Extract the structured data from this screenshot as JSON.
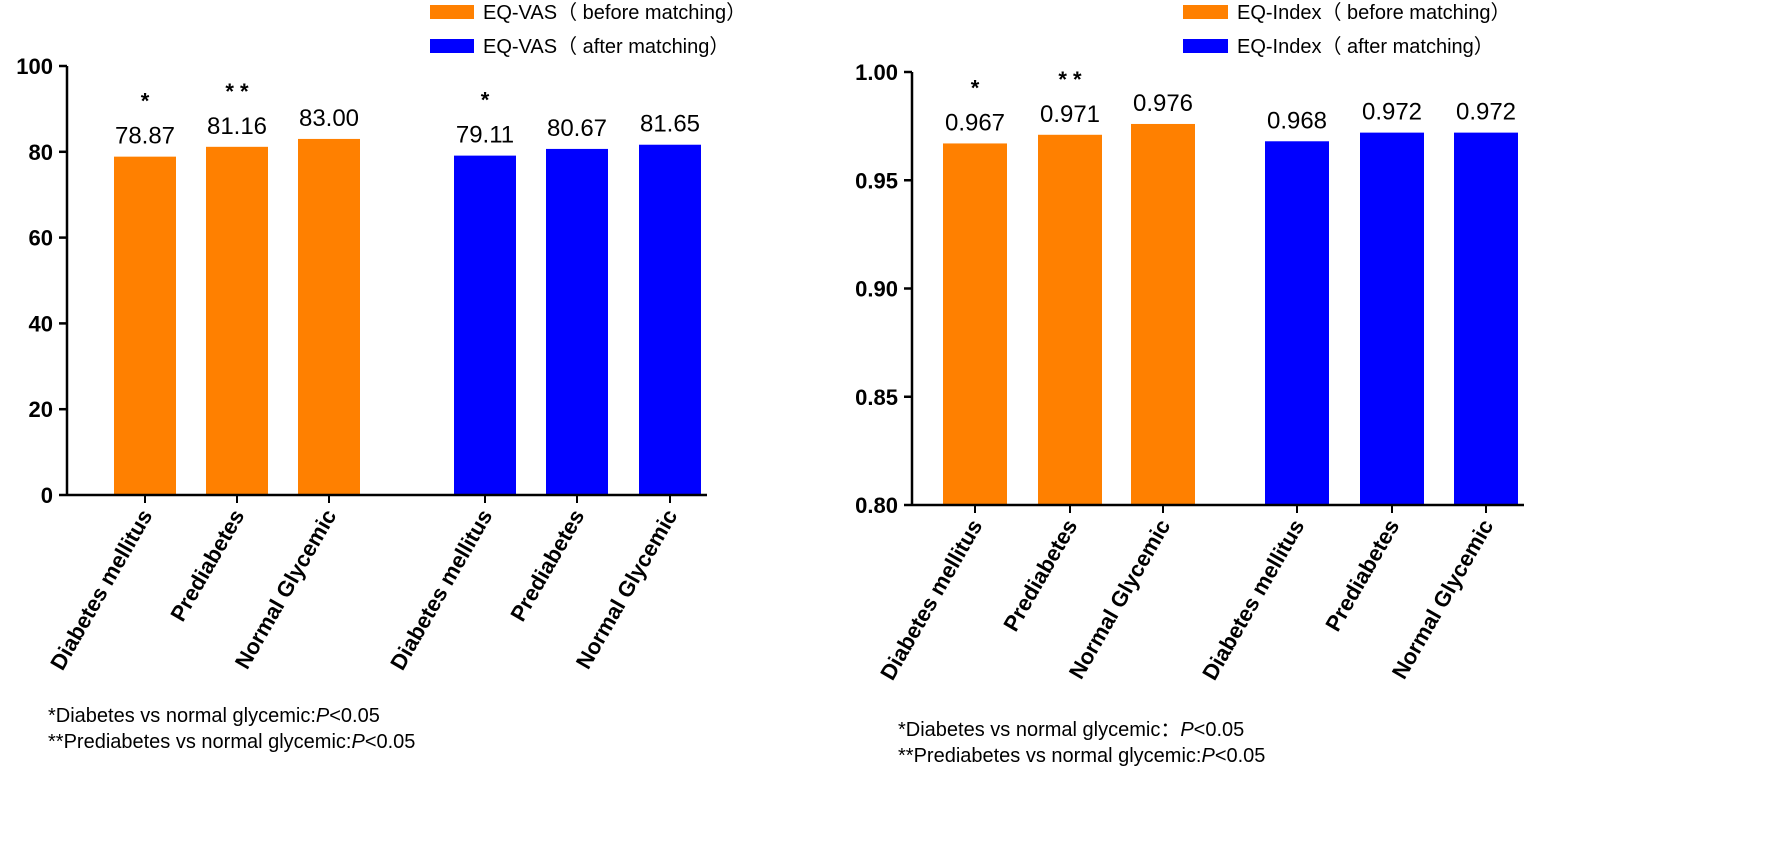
{
  "colors": {
    "before": "#FF8000",
    "after": "#0000FF",
    "axis": "#000000"
  },
  "chart_data": [
    {
      "type": "bar",
      "ylim": [
        0,
        100
      ],
      "yticks": [
        "0",
        "20",
        "40",
        "60",
        "80",
        "100"
      ],
      "legend_position": "top-right",
      "categories": [
        "Diabetes mellitus",
        "Prediabetes",
        "Normal Glycemic"
      ],
      "series": [
        {
          "name": "EQ-VAS（ before matching）",
          "color": "before",
          "values": [
            78.87,
            81.16,
            83.0
          ],
          "labels": [
            "78.87",
            "81.16",
            "83.00"
          ],
          "marks": [
            "*",
            "* *",
            ""
          ]
        },
        {
          "name": "EQ-VAS（ after matching）",
          "color": "after",
          "values": [
            79.11,
            80.67,
            81.65
          ],
          "labels": [
            "79.11",
            "80.67",
            "81.65"
          ],
          "marks": [
            "*",
            "",
            ""
          ]
        }
      ],
      "footnotes": [
        {
          "prefix": "*Diabetes vs normal glycemic:",
          "p": "P",
          "suffix": "<0.05"
        },
        {
          "prefix": "**Prediabetes vs normal glycemic:",
          "p": "P",
          "suffix": "<0.05"
        }
      ]
    },
    {
      "type": "bar",
      "ylim": [
        0.8,
        1.0
      ],
      "yticks": [
        "0.80",
        "0.85",
        "0.90",
        "0.95",
        "1.00"
      ],
      "legend_position": "top-right",
      "categories": [
        "Diabetes mellitus",
        "Prediabetes",
        "Normal Glycemic"
      ],
      "series": [
        {
          "name": "EQ-Index（ before matching）",
          "color": "before",
          "values": [
            0.967,
            0.971,
            0.976
          ],
          "labels": [
            "0.967",
            "0.971",
            "0.976"
          ],
          "marks": [
            "*",
            "* *",
            ""
          ]
        },
        {
          "name": "EQ-Index（ after matching）",
          "color": "after",
          "values": [
            0.968,
            0.972,
            0.972
          ],
          "labels": [
            "0.968",
            "0.972",
            "0.972"
          ],
          "marks": [
            "",
            "",
            ""
          ]
        }
      ],
      "footnotes": [
        {
          "prefix": "*Diabetes vs normal glycemic：",
          "p": "P",
          "suffix": "<0.05"
        },
        {
          "prefix": "**Prediabetes vs normal glycemic:",
          "p": "P",
          "suffix": "<0.05"
        }
      ]
    }
  ]
}
